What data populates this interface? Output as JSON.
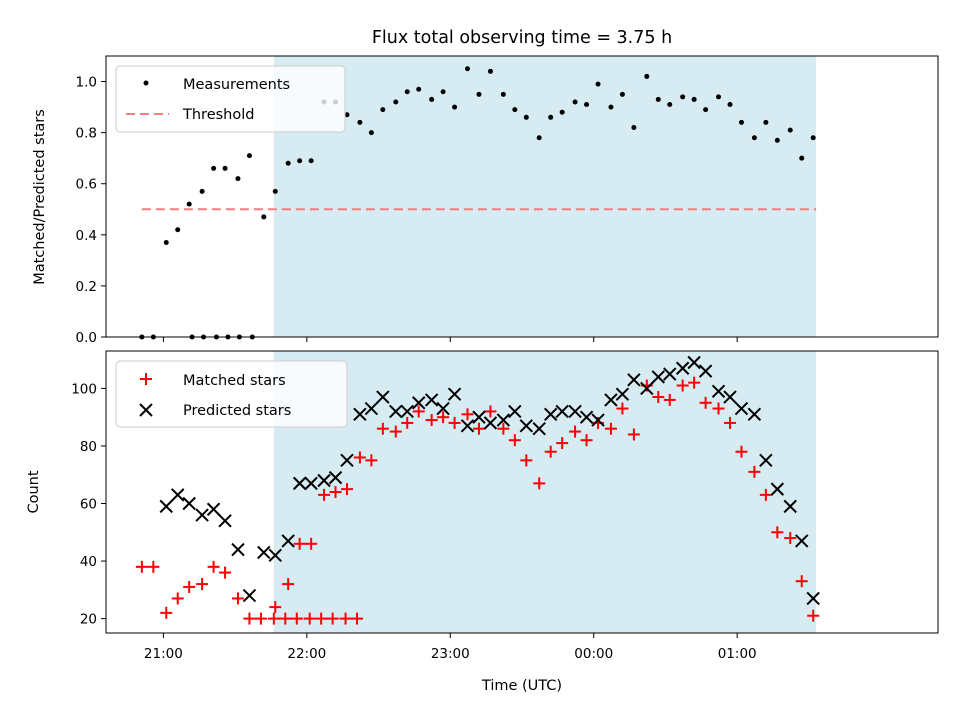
{
  "chart_data": {
    "type": "scatter",
    "title": "Flux total observing time = 3.75 h",
    "xlabel": "Time (UTC)",
    "x_ticks": [
      "21:00",
      "22:00",
      "23:00",
      "00:00",
      "01:00"
    ],
    "x_range_hours": [
      20.6,
      26.4
    ],
    "observing_window_hours": [
      21.77,
      25.55
    ],
    "colors": {
      "window": "#add8e6",
      "threshold": "#f08080",
      "matched": "#ff0000",
      "predicted": "#000000",
      "measurements": "#000000"
    },
    "panels": [
      {
        "ylabel": "Matched/Predicted stars",
        "ylim": [
          0,
          1.1
        ],
        "y_ticks": [
          "0.0",
          "0.2",
          "0.4",
          "0.6",
          "0.8",
          "1.0"
        ],
        "legend": {
          "placement": "upper left",
          "measurements": "Measurements",
          "threshold": "Threshold"
        },
        "threshold": {
          "value": 0.5,
          "x": [
            20.85,
            25.55
          ]
        },
        "series": [
          {
            "name": "Measurements",
            "marker": "dot",
            "points": [
              [
                20.85,
                0.0
              ],
              [
                20.93,
                0.0
              ],
              [
                21.2,
                0.0
              ],
              [
                21.28,
                0.0
              ],
              [
                21.37,
                0.0
              ],
              [
                21.45,
                0.0
              ],
              [
                21.53,
                0.0
              ],
              [
                21.62,
                0.0
              ],
              [
                21.02,
                0.37
              ],
              [
                21.1,
                0.42
              ],
              [
                21.18,
                0.52
              ],
              [
                21.27,
                0.57
              ],
              [
                21.35,
                0.66
              ],
              [
                21.43,
                0.66
              ],
              [
                21.52,
                0.62
              ],
              [
                21.6,
                0.71
              ],
              [
                21.7,
                0.47
              ],
              [
                21.78,
                0.57
              ],
              [
                21.87,
                0.68
              ],
              [
                21.95,
                0.69
              ],
              [
                22.03,
                0.69
              ],
              [
                22.12,
                0.92
              ],
              [
                22.2,
                0.92
              ],
              [
                22.28,
                0.87
              ],
              [
                22.37,
                0.84
              ],
              [
                22.45,
                0.8
              ],
              [
                22.53,
                0.89
              ],
              [
                22.62,
                0.92
              ],
              [
                22.7,
                0.96
              ],
              [
                22.78,
                0.97
              ],
              [
                22.87,
                0.93
              ],
              [
                22.95,
                0.96
              ],
              [
                23.03,
                0.9
              ],
              [
                23.12,
                1.05
              ],
              [
                23.2,
                0.95
              ],
              [
                23.28,
                1.04
              ],
              [
                23.37,
                0.95
              ],
              [
                23.45,
                0.89
              ],
              [
                23.53,
                0.86
              ],
              [
                23.62,
                0.78
              ],
              [
                23.7,
                0.86
              ],
              [
                23.78,
                0.88
              ],
              [
                23.87,
                0.92
              ],
              [
                23.95,
                0.91
              ],
              [
                24.03,
                0.99
              ],
              [
                24.12,
                0.9
              ],
              [
                24.2,
                0.95
              ],
              [
                24.28,
                0.82
              ],
              [
                24.37,
                1.02
              ],
              [
                24.45,
                0.93
              ],
              [
                24.53,
                0.91
              ],
              [
                24.62,
                0.94
              ],
              [
                24.7,
                0.93
              ],
              [
                24.78,
                0.89
              ],
              [
                24.87,
                0.94
              ],
              [
                24.95,
                0.91
              ],
              [
                25.03,
                0.84
              ],
              [
                25.12,
                0.78
              ],
              [
                25.2,
                0.84
              ],
              [
                25.28,
                0.77
              ],
              [
                25.37,
                0.81
              ],
              [
                25.45,
                0.7
              ],
              [
                25.53,
                0.78
              ]
            ]
          }
        ]
      },
      {
        "ylabel": "Count",
        "ylim": [
          15,
          113
        ],
        "y_ticks": [
          "20",
          "40",
          "60",
          "80",
          "100"
        ],
        "legend": {
          "placement": "upper left",
          "matched": "Matched stars",
          "predicted": "Predicted stars"
        },
        "series": [
          {
            "name": "Matched stars",
            "marker": "plus",
            "points": [
              [
                20.85,
                38
              ],
              [
                20.93,
                38
              ],
              [
                21.02,
                22
              ],
              [
                21.1,
                27
              ],
              [
                21.18,
                31
              ],
              [
                21.27,
                32
              ],
              [
                21.35,
                38
              ],
              [
                21.43,
                36
              ],
              [
                21.52,
                27
              ],
              [
                21.6,
                20
              ],
              [
                21.68,
                20
              ],
              [
                21.77,
                20
              ],
              [
                21.85,
                20
              ],
              [
                21.93,
                20
              ],
              [
                22.02,
                20
              ],
              [
                22.1,
                20
              ],
              [
                22.18,
                20
              ],
              [
                22.27,
                20
              ],
              [
                22.35,
                20
              ],
              [
                21.78,
                24
              ],
              [
                21.87,
                32
              ],
              [
                21.95,
                46
              ],
              [
                22.03,
                46
              ],
              [
                22.12,
                63
              ],
              [
                22.2,
                64
              ],
              [
                22.28,
                65
              ],
              [
                22.37,
                76
              ],
              [
                22.45,
                75
              ],
              [
                22.53,
                86
              ],
              [
                22.62,
                85
              ],
              [
                22.7,
                88
              ],
              [
                22.78,
                92
              ],
              [
                22.87,
                89
              ],
              [
                22.95,
                90
              ],
              [
                23.03,
                88
              ],
              [
                23.12,
                91
              ],
              [
                23.2,
                86
              ],
              [
                23.28,
                92
              ],
              [
                23.37,
                86
              ],
              [
                23.45,
                82
              ],
              [
                23.53,
                75
              ],
              [
                23.62,
                67
              ],
              [
                23.7,
                78
              ],
              [
                23.78,
                81
              ],
              [
                23.87,
                85
              ],
              [
                23.95,
                82
              ],
              [
                24.03,
                88
              ],
              [
                24.12,
                86
              ],
              [
                24.2,
                93
              ],
              [
                24.28,
                84
              ],
              [
                24.37,
                101
              ],
              [
                24.45,
                97
              ],
              [
                24.53,
                96
              ],
              [
                24.62,
                101
              ],
              [
                24.7,
                102
              ],
              [
                24.78,
                95
              ],
              [
                24.87,
                93
              ],
              [
                24.95,
                88
              ],
              [
                25.03,
                78
              ],
              [
                25.12,
                71
              ],
              [
                25.2,
                63
              ],
              [
                25.28,
                50
              ],
              [
                25.37,
                48
              ],
              [
                25.45,
                33
              ],
              [
                25.53,
                21
              ]
            ]
          },
          {
            "name": "Predicted stars",
            "marker": "x",
            "points": [
              [
                21.02,
                59
              ],
              [
                21.1,
                63
              ],
              [
                21.18,
                60
              ],
              [
                21.27,
                56
              ],
              [
                21.35,
                58
              ],
              [
                21.43,
                54
              ],
              [
                21.52,
                44
              ],
              [
                21.6,
                28
              ],
              [
                21.7,
                43
              ],
              [
                21.78,
                42
              ],
              [
                21.87,
                47
              ],
              [
                21.95,
                67
              ],
              [
                22.03,
                67
              ],
              [
                22.12,
                68
              ],
              [
                22.2,
                69
              ],
              [
                22.28,
                75
              ],
              [
                22.37,
                91
              ],
              [
                22.45,
                93
              ],
              [
                22.53,
                97
              ],
              [
                22.62,
                92
              ],
              [
                22.7,
                92
              ],
              [
                22.78,
                95
              ],
              [
                22.87,
                96
              ],
              [
                22.95,
                93
              ],
              [
                23.03,
                98
              ],
              [
                23.12,
                87
              ],
              [
                23.2,
                90
              ],
              [
                23.28,
                88
              ],
              [
                23.37,
                89
              ],
              [
                23.45,
                92
              ],
              [
                23.53,
                87
              ],
              [
                23.62,
                86
              ],
              [
                23.7,
                91
              ],
              [
                23.78,
                92
              ],
              [
                23.87,
                92
              ],
              [
                23.95,
                90
              ],
              [
                24.03,
                89
              ],
              [
                24.12,
                96
              ],
              [
                24.2,
                98
              ],
              [
                24.28,
                103
              ],
              [
                24.37,
                100
              ],
              [
                24.45,
                104
              ],
              [
                24.53,
                105
              ],
              [
                24.62,
                107
              ],
              [
                24.7,
                109
              ],
              [
                24.78,
                106
              ],
              [
                24.87,
                99
              ],
              [
                24.95,
                97
              ],
              [
                25.03,
                93
              ],
              [
                25.12,
                91
              ],
              [
                25.2,
                75
              ],
              [
                25.28,
                65
              ],
              [
                25.37,
                59
              ],
              [
                25.45,
                47
              ],
              [
                25.53,
                27
              ]
            ]
          }
        ]
      }
    ]
  }
}
